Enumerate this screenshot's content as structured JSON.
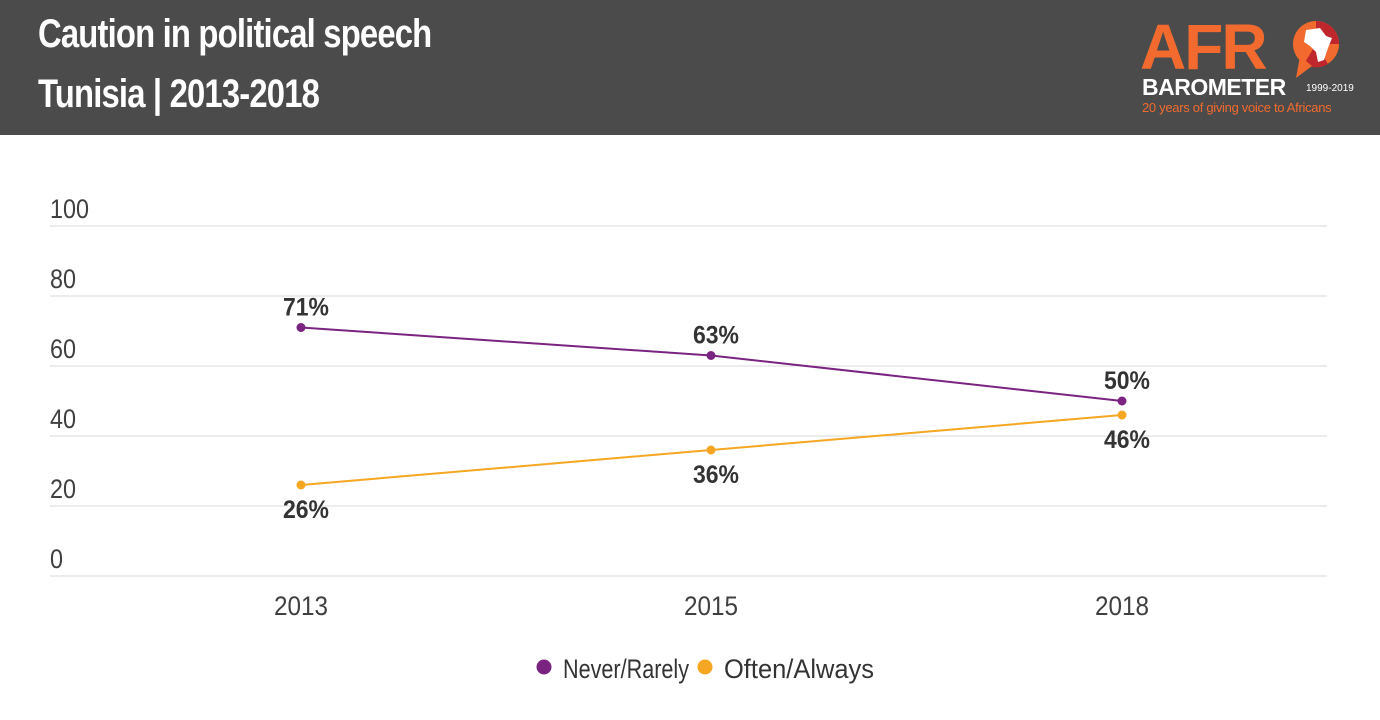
{
  "header": {
    "title": "Caution in political speech",
    "subtitle": "Tunisia  |  2013-2018"
  },
  "logo": {
    "afro": "AFR",
    "barometer": "BAROMETER",
    "years": "1999-2019",
    "tagline": "20 years of giving voice to Africans",
    "colors": {
      "orange": "#f26a2e",
      "red": "#c0272d"
    }
  },
  "chart_data": {
    "type": "line",
    "title": "Caution in political speech",
    "subtitle": "Tunisia | 2013-2018",
    "xlabel": "",
    "ylabel": "",
    "x": [
      "2013",
      "2015",
      "2018"
    ],
    "ylim": [
      0,
      100
    ],
    "yticks": [
      "0",
      "20",
      "40",
      "60",
      "80",
      "100"
    ],
    "grid": true,
    "legend_position": "bottom",
    "series": [
      {
        "name": "Never/Rarely",
        "values": [
          71,
          63,
          50
        ],
        "labels": [
          "71%",
          "63%",
          "50%"
        ],
        "color": "#7b2381",
        "label_side": "above"
      },
      {
        "name": "Often/Always",
        "values": [
          26,
          36,
          46
        ],
        "labels": [
          "26%",
          "36%",
          "46%"
        ],
        "color": "#f5a623",
        "label_side": "below"
      }
    ]
  }
}
